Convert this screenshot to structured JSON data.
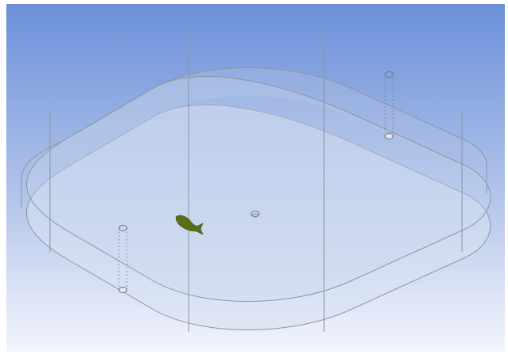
{
  "viewport": {
    "background_top": "#6b8fd9",
    "background_bottom": "#f3f5fc",
    "model_fill": "#c9d7ef",
    "model_edge": "#8c96a3",
    "tube_color": "#6f7680",
    "fish_color": "#5a6d1a"
  },
  "scene": {
    "objects": [
      "rounded-square-tank",
      "fish-body",
      "center-hole",
      "left-vertical-tube",
      "right-vertical-tube"
    ]
  }
}
